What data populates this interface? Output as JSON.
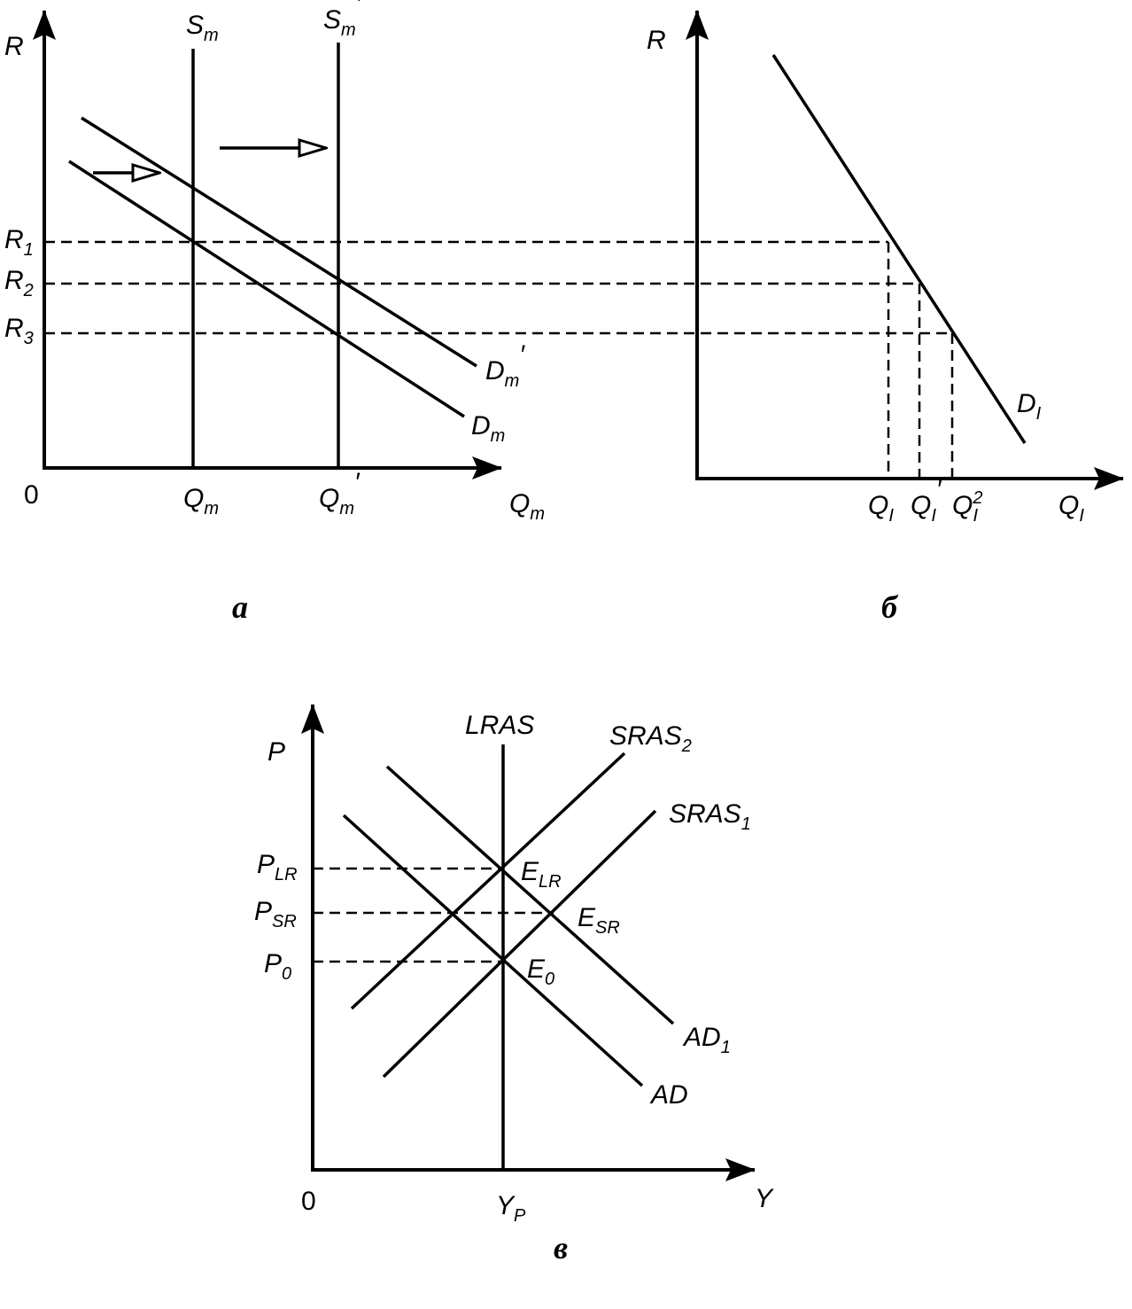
{
  "panel_a": {
    "caption": "а",
    "axis_y": "R",
    "origin": "0",
    "axis_x": {
      "text": "Q",
      "sub": "m"
    },
    "labels": [
      {
        "text": "S",
        "sub": "m"
      },
      {
        "text": "S",
        "sub": "m",
        "prime": "′"
      },
      {
        "text": "D",
        "sub": "m",
        "prime": "′"
      },
      {
        "text": "D",
        "sub": "m"
      },
      {
        "text": "R",
        "sub": "1"
      },
      {
        "text": "R",
        "sub": "2"
      },
      {
        "text": "R",
        "sub": "3"
      },
      {
        "text": "Q",
        "sub": "m"
      },
      {
        "text": "Q",
        "sub": "m",
        "prime": "′"
      }
    ]
  },
  "panel_b": {
    "caption": "б",
    "axis_y": "R",
    "axis_x": {
      "text": "Q",
      "sub": "I"
    },
    "labels": [
      {
        "text": "D",
        "sub": "I"
      },
      {
        "text": "Q",
        "sub": "I"
      },
      {
        "text": "Q",
        "sub": "I",
        "prime": "′"
      },
      {
        "text": "Q",
        "sub": "I",
        "sup": "2"
      }
    ]
  },
  "panel_c": {
    "caption": "в",
    "axis_y": "P",
    "origin": "0",
    "axis_x": "Y",
    "labels": [
      {
        "text": "LRAS"
      },
      {
        "text": "SRAS",
        "sub": "2"
      },
      {
        "text": "SRAS",
        "sub": "1"
      },
      {
        "text": "AD",
        "sub": "1"
      },
      {
        "text": "AD"
      },
      {
        "text": "P",
        "sub": "LR"
      },
      {
        "text": "P",
        "sub": "SR"
      },
      {
        "text": "P",
        "sub": "0"
      },
      {
        "text": "E",
        "sub": "LR"
      },
      {
        "text": "E",
        "sub": "SR"
      },
      {
        "text": "E",
        "sub": "0"
      },
      {
        "text": "Y",
        "sub": "P"
      }
    ]
  }
}
